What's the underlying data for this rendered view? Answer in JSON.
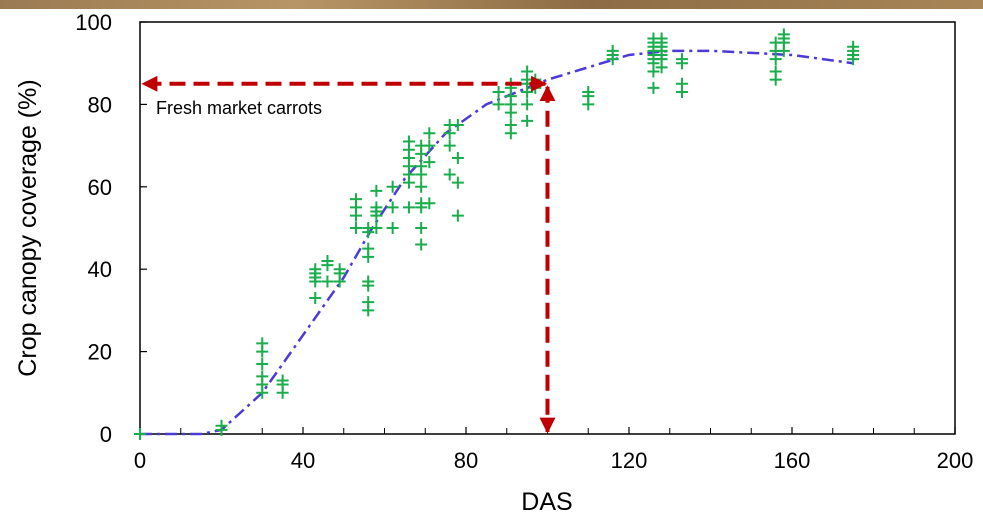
{
  "chart_data": {
    "type": "scatter",
    "xlabel": "DAS",
    "ylabel": "Crop canopy coverage (%)",
    "annotation": "Fresh market carrots",
    "xlim": [
      0,
      200
    ],
    "ylim": [
      0,
      100
    ],
    "xticks": [
      0,
      40,
      80,
      120,
      160,
      200
    ],
    "xticks_minor": [
      10,
      20,
      30,
      50,
      60,
      70,
      90,
      100,
      110,
      130,
      140,
      150,
      170,
      180,
      190
    ],
    "yticks": [
      0,
      20,
      40,
      60,
      80,
      100
    ],
    "series": [
      {
        "color": "#1aad4b",
        "x": [
          0,
          20,
          20,
          30,
          30,
          30,
          30,
          30,
          30,
          35,
          35,
          35,
          43,
          43,
          43,
          43,
          43,
          46,
          46,
          46,
          49,
          49,
          49,
          53,
          53,
          53,
          53,
          56,
          56,
          56,
          56,
          56,
          56,
          56,
          56,
          58,
          58,
          58,
          58,
          58,
          62,
          62,
          62,
          66,
          66,
          66,
          66,
          66,
          66,
          66,
          69,
          69,
          69,
          69,
          69,
          69,
          69,
          69,
          69,
          71,
          71,
          71,
          71,
          76,
          76,
          76,
          76,
          78,
          78,
          78,
          78,
          88,
          88,
          91,
          91,
          91,
          91,
          91,
          91,
          91,
          95,
          95,
          95,
          95,
          95,
          95,
          97,
          97,
          110,
          110,
          110,
          116,
          116,
          116,
          126,
          126,
          126,
          126,
          126,
          126,
          126,
          126,
          126,
          128,
          128,
          128,
          128,
          128,
          128,
          128,
          133,
          133,
          133,
          133,
          156,
          156,
          156,
          156,
          156,
          158,
          158,
          158,
          158,
          175,
          175,
          175,
          175
        ],
        "y": [
          0,
          1,
          2,
          10,
          12,
          14,
          17,
          20,
          22,
          10,
          12,
          13,
          33,
          37,
          38,
          39,
          40,
          37,
          41,
          42,
          37,
          39,
          40,
          50,
          53,
          55,
          57,
          30,
          32,
          36,
          37,
          43,
          45,
          49,
          50,
          50,
          53,
          54,
          55,
          59,
          50,
          55,
          60,
          55,
          61,
          63,
          65,
          67,
          69,
          71,
          46,
          50,
          55,
          56,
          60,
          63,
          65,
          68,
          70,
          56,
          66,
          70,
          73,
          63,
          70,
          73,
          75,
          53,
          61,
          67,
          75,
          80,
          83,
          73,
          75,
          78,
          80,
          82,
          84,
          85,
          76,
          80,
          83,
          85,
          86,
          88,
          84,
          86,
          80,
          82,
          83,
          91,
          92,
          93,
          84,
          88,
          90,
          91,
          92,
          93,
          94,
          95,
          96,
          89,
          91,
          92,
          93,
          94,
          95,
          96,
          83,
          85,
          90,
          91,
          86,
          88,
          91,
          93,
          95,
          93,
          95,
          96,
          97,
          91,
          92,
          93,
          94
        ]
      }
    ],
    "fit": {
      "color": "#4b3bd6",
      "x": [
        0,
        15,
        20,
        30,
        40,
        50,
        57,
        65,
        75,
        85,
        95,
        100,
        110,
        120,
        130,
        140,
        150,
        160,
        175
      ],
      "y": [
        0,
        0,
        1,
        10,
        24,
        38,
        50,
        62,
        73,
        80,
        84,
        86,
        89,
        92,
        93,
        93,
        92.5,
        92,
        90
      ]
    },
    "reference": {
      "x": 100,
      "y": 85,
      "color": "#c00000"
    }
  }
}
